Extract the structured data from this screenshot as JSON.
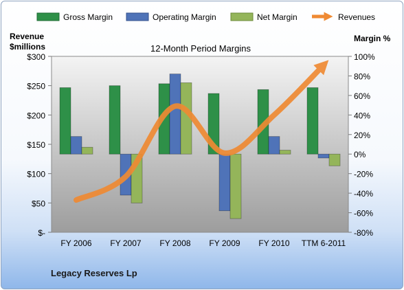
{
  "company": "Legacy Reserves Lp",
  "chart_data": {
    "type": "bar",
    "title": "12-Month Period Margins",
    "categories": [
      "FY 2006",
      "FY 2007",
      "FY 2008",
      "FY 2009",
      "FY 2010",
      "TTM 6-2011"
    ],
    "left_axis": {
      "title_line1": "Revenue",
      "title_line2": "$millions",
      "range": [
        0,
        300
      ],
      "ticks": [
        0,
        50,
        100,
        150,
        200,
        250,
        300
      ],
      "tick_labels": [
        "$-",
        "$50",
        "$100",
        "$150",
        "$200",
        "$250",
        "$300"
      ]
    },
    "right_axis": {
      "title": "Margin %",
      "range": [
        -80,
        100
      ],
      "ticks": [
        -80,
        -60,
        -40,
        -20,
        0,
        20,
        40,
        60,
        80,
        100
      ],
      "tick_labels": [
        "-80%",
        "-60%",
        "-40%",
        "-20%",
        "0%",
        "20%",
        "40%",
        "60%",
        "80%",
        "100%"
      ]
    },
    "series": [
      {
        "name": "Gross Margin",
        "kind": "bar",
        "axis": "right",
        "color": "#2e9048",
        "values": [
          68,
          70,
          72,
          62,
          66,
          68
        ]
      },
      {
        "name": "Operating Margin",
        "kind": "bar",
        "axis": "right",
        "color": "#4f73b8",
        "values": [
          18,
          -42,
          82,
          -58,
          18,
          -4
        ]
      },
      {
        "name": "Net Margin",
        "kind": "bar",
        "axis": "right",
        "color": "#94b55a",
        "values": [
          7,
          -50,
          73,
          -66,
          4,
          -12
        ]
      },
      {
        "name": "Revenues",
        "kind": "line",
        "axis": "left",
        "color": "#ef8a33",
        "values": [
          55,
          95,
          215,
          135,
          200,
          285
        ]
      }
    ],
    "legend_position": "top",
    "grid": false
  }
}
